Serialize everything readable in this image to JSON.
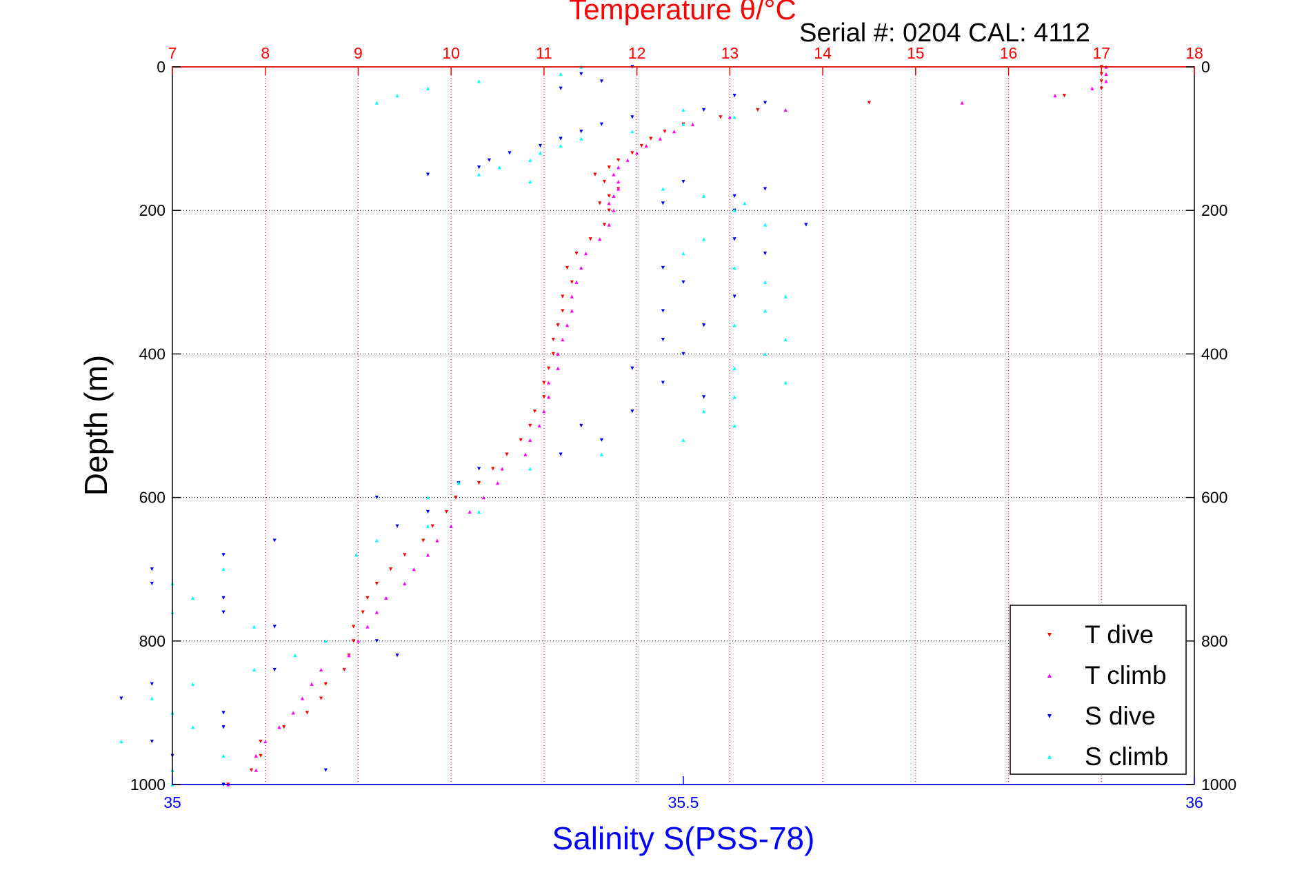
{
  "chart_data": {
    "type": "scatter",
    "title": "Temperature θ/°C",
    "subtitle": "Serial #: 0204  CAL: 4112",
    "ylabel": "Depth (m)",
    "xlabel": "Salinity S(PSS-78)",
    "y_axis": {
      "range": [
        0,
        1000
      ],
      "reversed": true,
      "ticks": [
        0,
        200,
        400,
        600,
        800,
        1000
      ],
      "tick_labels": [
        "0",
        "200",
        "400",
        "600",
        "800",
        "1000"
      ]
    },
    "x_top_axis": {
      "quantity": "Temperature",
      "range": [
        7,
        18
      ],
      "ticks": [
        7,
        8,
        9,
        10,
        11,
        12,
        13,
        14,
        15,
        16,
        17,
        18
      ],
      "tick_labels": [
        "7",
        "8",
        "9",
        "10",
        "11",
        "12",
        "13",
        "14",
        "15",
        "16",
        "17",
        "18"
      ],
      "color": "#ff0000"
    },
    "x_bottom_axis": {
      "quantity": "Salinity",
      "range": [
        35,
        36
      ],
      "ticks": [
        35,
        35.5,
        36
      ],
      "tick_labels": [
        "35",
        "35.5",
        "36"
      ],
      "color": "#0000ff"
    },
    "grid": {
      "horizontal": true,
      "vertical": true,
      "vertical_color": "#ff0000",
      "horizontal_color": "#000000",
      "style": "dotted"
    },
    "legend": {
      "placement": "bottom-right",
      "entries": [
        "T dive",
        "T climb",
        "S dive",
        "S climb"
      ]
    },
    "series": [
      {
        "name": "T dive",
        "axis": "temperature",
        "color": "#ff0000",
        "marker": "triangle-down",
        "depth": [
          0,
          10,
          20,
          30,
          40,
          50,
          60,
          70,
          80,
          90,
          100,
          110,
          120,
          130,
          140,
          150,
          160,
          170,
          180,
          190,
          200,
          220,
          240,
          260,
          280,
          300,
          320,
          340,
          360,
          380,
          400,
          420,
          440,
          460,
          480,
          500,
          520,
          540,
          560,
          580,
          600,
          620,
          640,
          660,
          680,
          700,
          720,
          740,
          760,
          780,
          800,
          820,
          840,
          860,
          880,
          900,
          920,
          940,
          960,
          980,
          1000
        ],
        "value": [
          17.0,
          17.0,
          17.0,
          17.0,
          16.6,
          14.5,
          13.3,
          12.9,
          12.5,
          12.3,
          12.15,
          12.05,
          11.95,
          11.8,
          11.7,
          11.55,
          11.65,
          11.8,
          11.7,
          11.6,
          11.7,
          11.65,
          11.5,
          11.35,
          11.25,
          11.3,
          11.2,
          11.2,
          11.15,
          11.1,
          11.1,
          11.05,
          11.0,
          11.0,
          10.9,
          10.85,
          10.75,
          10.6,
          10.45,
          10.3,
          10.05,
          9.95,
          9.8,
          9.7,
          9.5,
          9.35,
          9.2,
          9.1,
          9.05,
          8.95,
          8.95,
          8.9,
          8.85,
          8.65,
          8.6,
          8.45,
          8.2,
          7.95,
          7.95,
          7.85,
          7.6
        ]
      },
      {
        "name": "T climb",
        "axis": "temperature",
        "color": "#ff00ff",
        "marker": "triangle-up",
        "depth": [
          0,
          10,
          20,
          30,
          40,
          50,
          60,
          70,
          80,
          90,
          100,
          110,
          120,
          130,
          140,
          150,
          160,
          170,
          180,
          190,
          200,
          220,
          240,
          260,
          280,
          300,
          320,
          340,
          360,
          380,
          400,
          420,
          440,
          460,
          480,
          500,
          520,
          540,
          560,
          580,
          600,
          620,
          640,
          660,
          680,
          700,
          720,
          740,
          760,
          780,
          800,
          820,
          840,
          860,
          880,
          900,
          920,
          940,
          960,
          980,
          1000
        ],
        "value": [
          17.05,
          17.05,
          17.05,
          16.9,
          16.5,
          15.5,
          13.6,
          13.0,
          12.6,
          12.4,
          12.25,
          12.1,
          12.0,
          11.9,
          11.8,
          11.75,
          11.8,
          11.8,
          11.75,
          11.7,
          11.75,
          11.7,
          11.6,
          11.45,
          11.4,
          11.35,
          11.3,
          11.3,
          11.25,
          11.2,
          11.15,
          11.15,
          11.05,
          11.05,
          11.0,
          10.95,
          10.85,
          10.8,
          10.55,
          10.5,
          10.35,
          10.2,
          10.0,
          9.85,
          9.75,
          9.6,
          9.5,
          9.3,
          9.2,
          9.1,
          9.0,
          8.9,
          8.6,
          8.5,
          8.4,
          8.3,
          8.15,
          8.0,
          7.9,
          7.9,
          7.6
        ]
      },
      {
        "name": "S dive",
        "axis": "salinity",
        "color": "#0000ff",
        "marker": "triangle-down",
        "depth": [
          0,
          10,
          20,
          30,
          40,
          50,
          60,
          70,
          80,
          90,
          100,
          110,
          120,
          130,
          140,
          150,
          160,
          170,
          180,
          190,
          200,
          220,
          240,
          260,
          280,
          300,
          320,
          340,
          360,
          380,
          400,
          420,
          440,
          460,
          480,
          500,
          520,
          540,
          560,
          580,
          600,
          620,
          640,
          660,
          680,
          700,
          720,
          740,
          760,
          780,
          800,
          820,
          840,
          860,
          880,
          900,
          920,
          940,
          960,
          980,
          1000
        ],
        "value": [
          35.45,
          35.4,
          35.42,
          35.38,
          35.55,
          35.58,
          35.52,
          35.45,
          35.42,
          35.4,
          35.38,
          35.36,
          35.33,
          35.31,
          35.3,
          35.25,
          35.5,
          35.58,
          35.55,
          35.48,
          35.55,
          35.62,
          35.55,
          35.58,
          35.48,
          35.5,
          35.55,
          35.48,
          35.52,
          35.48,
          35.5,
          35.45,
          35.48,
          35.52,
          35.45,
          35.4,
          35.42,
          35.38,
          35.3,
          35.28,
          35.2,
          35.25,
          35.22,
          35.1,
          35.05,
          34.98,
          34.98,
          35.05,
          35.05,
          35.1,
          35.2,
          35.22,
          35.1,
          34.98,
          34.95,
          35.05,
          35.05,
          34.98,
          35.0,
          35.15,
          35.05
        ]
      },
      {
        "name": "S climb",
        "axis": "salinity",
        "color": "#00ffff",
        "marker": "triangle-up",
        "depth": [
          0,
          10,
          20,
          30,
          40,
          50,
          60,
          70,
          80,
          90,
          100,
          110,
          120,
          130,
          140,
          150,
          160,
          170,
          180,
          190,
          200,
          220,
          240,
          260,
          280,
          300,
          320,
          340,
          360,
          380,
          400,
          420,
          440,
          460,
          480,
          500,
          520,
          540,
          560,
          580,
          600,
          620,
          640,
          660,
          680,
          700,
          720,
          740,
          760,
          780,
          800,
          820,
          840,
          860,
          880,
          900,
          920,
          940,
          960,
          980,
          1000
        ],
        "value": [
          35.4,
          35.38,
          35.3,
          35.25,
          35.22,
          35.2,
          35.5,
          35.55,
          35.5,
          35.45,
          35.4,
          35.38,
          35.36,
          35.35,
          35.32,
          35.3,
          35.35,
          35.48,
          35.52,
          35.56,
          35.55,
          35.58,
          35.52,
          35.5,
          35.55,
          35.58,
          35.6,
          35.58,
          35.55,
          35.6,
          35.58,
          35.55,
          35.6,
          35.55,
          35.52,
          35.55,
          35.5,
          35.42,
          35.35,
          35.28,
          35.25,
          35.3,
          35.25,
          35.2,
          35.18,
          35.05,
          35.0,
          35.02,
          35.0,
          35.08,
          35.15,
          35.12,
          35.08,
          35.02,
          34.98,
          35.0,
          35.02,
          34.95,
          35.05,
          35.0,
          35.0
        ]
      }
    ]
  }
}
